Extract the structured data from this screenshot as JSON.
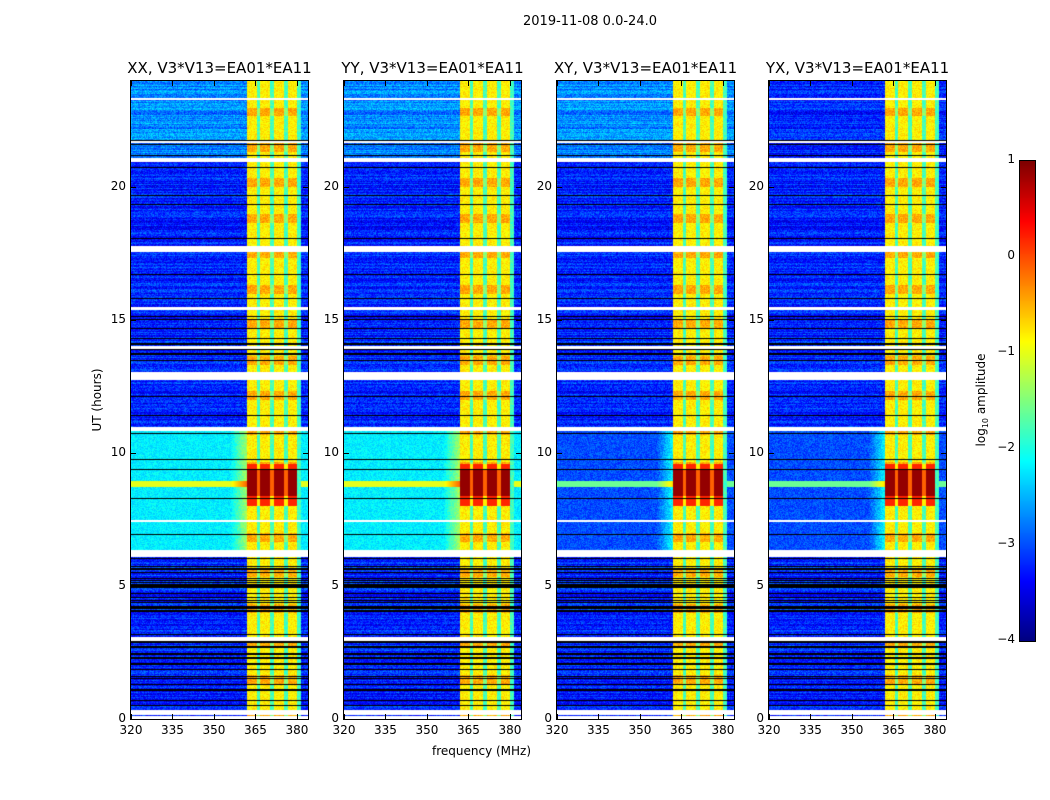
{
  "chart_data": {
    "type": "heatmap",
    "title": "2019-11-08 0.0-24.0",
    "xlabel": "frequency (MHz)",
    "ylabel": "UT (hours)",
    "xlim": [
      320,
      384
    ],
    "ylim": [
      0,
      24
    ],
    "xticks": [
      320,
      335,
      350,
      365,
      380
    ],
    "yticks": [
      0,
      5,
      10,
      15,
      20
    ],
    "panels": [
      {
        "title": "XX, V3*V13=EA01*EA11",
        "polarization": "XX"
      },
      {
        "title": "YY, V3*V13=EA01*EA11",
        "polarization": "YY"
      },
      {
        "title": "XY, V3*V13=EA01*EA11",
        "polarization": "XY"
      },
      {
        "title": "YX, V3*V13=EA01*EA11",
        "polarization": "YX"
      }
    ],
    "colorbar": {
      "label": "log",
      "label_sub": "10",
      "label_rest": " amplitude",
      "range": [
        -4,
        1
      ],
      "ticks": [
        "1",
        "0",
        "−1",
        "−2",
        "−3",
        "−4"
      ],
      "colormap": "jet"
    },
    "features": {
      "rfi_band_mhz": [
        362,
        380
      ],
      "band_notches_mhz": [
        366,
        371,
        376
      ],
      "strong_interval_hours": [
        8.0,
        9.6
      ],
      "flag_gaps_hours": [
        [
          0.0,
          0.1
        ],
        [
          0.15,
          0.35
        ],
        [
          2.95,
          3.1
        ],
        [
          6.1,
          6.35
        ],
        [
          7.4,
          7.5
        ],
        [
          10.85,
          11.0
        ],
        [
          12.75,
          13.05
        ],
        [
          13.9,
          14.05
        ],
        [
          15.4,
          15.5
        ],
        [
          17.55,
          17.8
        ],
        [
          20.95,
          21.1
        ],
        [
          21.65,
          21.75
        ],
        [
          23.3,
          23.35
        ]
      ],
      "background_log_amplitude": -3.2,
      "band_log_amplitude": -0.8,
      "strong_log_amplitude": 0.9
    }
  }
}
